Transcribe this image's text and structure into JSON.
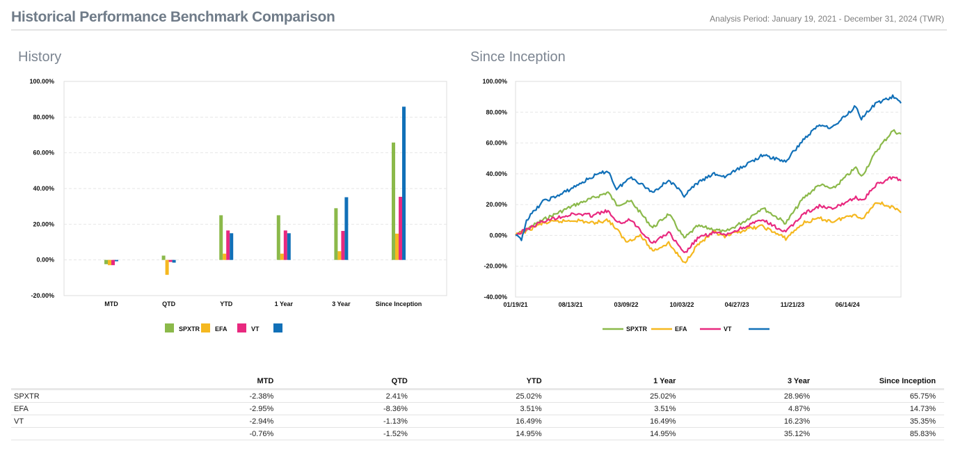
{
  "header": {
    "title": "Historical Performance Benchmark Comparison",
    "period": "Analysis Period: January 19, 2021 - December 31, 2024 (TWR)"
  },
  "history": {
    "section_title": "History",
    "chart_data": {
      "type": "bar",
      "categories": [
        "MTD",
        "QTD",
        "YTD",
        "1 Year",
        "3 Year",
        "Since Inception"
      ],
      "series": [
        {
          "name": "SPXTR",
          "color": "#8bb94a",
          "values": [
            -2.38,
            2.41,
            25.02,
            25.02,
            28.96,
            65.75
          ]
        },
        {
          "name": "EFA",
          "color": "#f5b820",
          "values": [
            -2.95,
            -8.36,
            3.51,
            3.51,
            4.87,
            14.73
          ]
        },
        {
          "name": "VT",
          "color": "#e8297f",
          "values": [
            -2.94,
            -1.13,
            16.49,
            16.49,
            16.23,
            35.35
          ]
        },
        {
          "name": "",
          "color": "#1170b8",
          "values": [
            -0.76,
            -1.52,
            14.95,
            14.95,
            35.12,
            85.83
          ]
        }
      ],
      "ylim": [
        -20,
        100
      ],
      "yticks": [
        "-20.00%",
        "0.00%",
        "20.00%",
        "40.00%",
        "60.00%",
        "80.00%",
        "100.00%"
      ],
      "grid": true,
      "legend": "bottom"
    }
  },
  "inception": {
    "section_title": "Since Inception",
    "chart_data": {
      "type": "line",
      "x_ticks": [
        "01/19/21",
        "08/13/21",
        "03/09/22",
        "10/03/22",
        "04/27/23",
        "11/21/23",
        "06/14/24"
      ],
      "xlim": [
        "01/19/21",
        "12/31/24"
      ],
      "ylim": [
        -40,
        100
      ],
      "yticks": [
        "-40.00%",
        "-20.00%",
        "0.00%",
        "20.00%",
        "40.00%",
        "60.00%",
        "80.00%",
        "100.00%"
      ],
      "grid": true,
      "legend": "bottom",
      "series": [
        {
          "name": "SPXTR",
          "color": "#8bb94a",
          "x": [
            "01/19/21",
            "03/01/21",
            "05/01/21",
            "07/01/21",
            "09/01/21",
            "11/01/21",
            "12/31/21",
            "02/01/22",
            "03/28/22",
            "06/16/22",
            "08/15/22",
            "10/12/22",
            "12/01/22",
            "02/01/23",
            "03/13/23",
            "06/01/23",
            "07/31/23",
            "10/27/23",
            "12/31/23",
            "03/01/24",
            "04/19/24",
            "07/15/24",
            "08/05/24",
            "10/01/24",
            "11/30/24",
            "12/31/24"
          ],
          "y": [
            0,
            4,
            10,
            15,
            20,
            24,
            28,
            20,
            22,
            5,
            14,
            -2,
            6,
            4,
            2,
            10,
            18,
            8,
            24,
            33,
            30,
            44,
            38,
            55,
            68,
            65.75
          ]
        },
        {
          "name": "EFA",
          "color": "#f5b820",
          "x": [
            "01/19/21",
            "03/01/21",
            "05/01/21",
            "07/01/21",
            "09/01/21",
            "11/01/21",
            "12/31/21",
            "02/01/22",
            "03/08/22",
            "05/01/22",
            "06/16/22",
            "08/15/22",
            "10/12/22",
            "12/01/22",
            "02/01/23",
            "03/13/23",
            "06/01/23",
            "07/31/23",
            "10/27/23",
            "12/31/23",
            "03/01/24",
            "04/19/24",
            "07/15/24",
            "08/05/24",
            "10/01/24",
            "11/30/24",
            "12/31/24"
          ],
          "y": [
            0,
            3,
            8,
            9,
            10,
            8,
            10,
            4,
            -4,
            0,
            -10,
            -5,
            -18,
            -6,
            2,
            -1,
            4,
            6,
            -2,
            8,
            11,
            9,
            14,
            10,
            22,
            18,
            14.73
          ]
        },
        {
          "name": "VT",
          "color": "#e8297f",
          "x": [
            "01/19/21",
            "03/01/21",
            "05/01/21",
            "07/01/21",
            "09/01/21",
            "11/01/21",
            "12/31/21",
            "02/01/22",
            "03/28/22",
            "06/16/22",
            "08/15/22",
            "10/12/22",
            "12/01/22",
            "02/01/23",
            "03/13/23",
            "06/01/23",
            "07/31/23",
            "10/27/23",
            "12/31/23",
            "03/01/24",
            "04/19/24",
            "07/15/24",
            "08/05/24",
            "10/01/24",
            "11/30/24",
            "12/31/24"
          ],
          "y": [
            0,
            4,
            9,
            12,
            14,
            13,
            16,
            8,
            10,
            -5,
            2,
            -12,
            -2,
            2,
            0,
            6,
            10,
            2,
            14,
            19,
            17,
            25,
            22,
            33,
            38,
            35.35
          ]
        },
        {
          "name": "",
          "color": "#1170b8",
          "x": [
            "01/19/21",
            "02/10/21",
            "03/01/21",
            "05/01/21",
            "07/01/21",
            "09/01/21",
            "11/01/21",
            "12/31/21",
            "02/01/22",
            "03/28/22",
            "06/16/22",
            "08/15/22",
            "10/12/22",
            "12/01/22",
            "02/01/23",
            "03/13/23",
            "06/01/23",
            "07/31/23",
            "10/27/23",
            "12/31/23",
            "03/01/24",
            "04/19/24",
            "07/15/24",
            "08/05/24",
            "10/01/24",
            "11/30/24",
            "12/31/24"
          ],
          "y": [
            0,
            -3,
            10,
            22,
            26,
            32,
            38,
            42,
            30,
            38,
            28,
            36,
            26,
            34,
            40,
            38,
            46,
            52,
            48,
            62,
            72,
            70,
            84,
            76,
            86,
            90,
            85.83
          ]
        }
      ]
    }
  },
  "table": {
    "headers": [
      "",
      "MTD",
      "QTD",
      "YTD",
      "1 Year",
      "3 Year",
      "Since Inception"
    ],
    "rows": [
      {
        "name": "SPXTR",
        "cells": [
          "-2.38%",
          "2.41%",
          "25.02%",
          "25.02%",
          "28.96%",
          "65.75%"
        ]
      },
      {
        "name": "EFA",
        "cells": [
          "-2.95%",
          "-8.36%",
          "3.51%",
          "3.51%",
          "4.87%",
          "14.73%"
        ]
      },
      {
        "name": "VT",
        "cells": [
          "-2.94%",
          "-1.13%",
          "16.49%",
          "16.49%",
          "16.23%",
          "35.35%"
        ]
      },
      {
        "name": "",
        "cells": [
          "-0.76%",
          "-1.52%",
          "14.95%",
          "14.95%",
          "35.12%",
          "85.83%"
        ]
      }
    ]
  }
}
